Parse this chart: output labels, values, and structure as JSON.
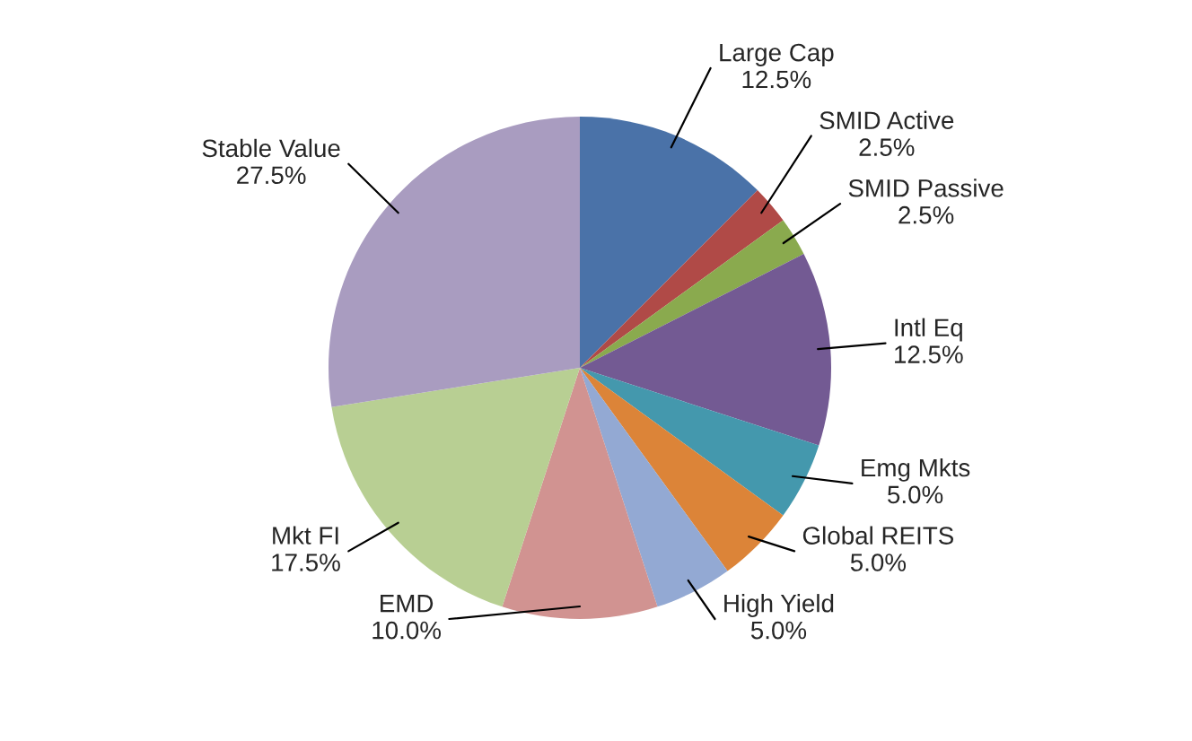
{
  "chart_data": {
    "type": "pie",
    "categories": [
      "Large Cap",
      "SMID Active",
      "SMID Passive",
      "Intl Eq",
      "Emg Mkts",
      "Global REITS",
      "High Yield",
      "EMD",
      "Mkt FI",
      "Stable Value"
    ],
    "values": [
      12.5,
      2.5,
      2.5,
      12.5,
      5.0,
      5.0,
      5.0,
      10.0,
      17.5,
      27.5
    ],
    "value_labels": [
      "12.5%",
      "2.5%",
      "2.5%",
      "12.5%",
      "5.0%",
      "5.0%",
      "5.0%",
      "10.0%",
      "17.5%",
      "27.5%"
    ],
    "colors": [
      "#4a72a8",
      "#b04a47",
      "#8aaa4e",
      "#735a93",
      "#4498ad",
      "#dc8438",
      "#93a9d3",
      "#d19391",
      "#b8cf93",
      "#a99cc0"
    ]
  }
}
